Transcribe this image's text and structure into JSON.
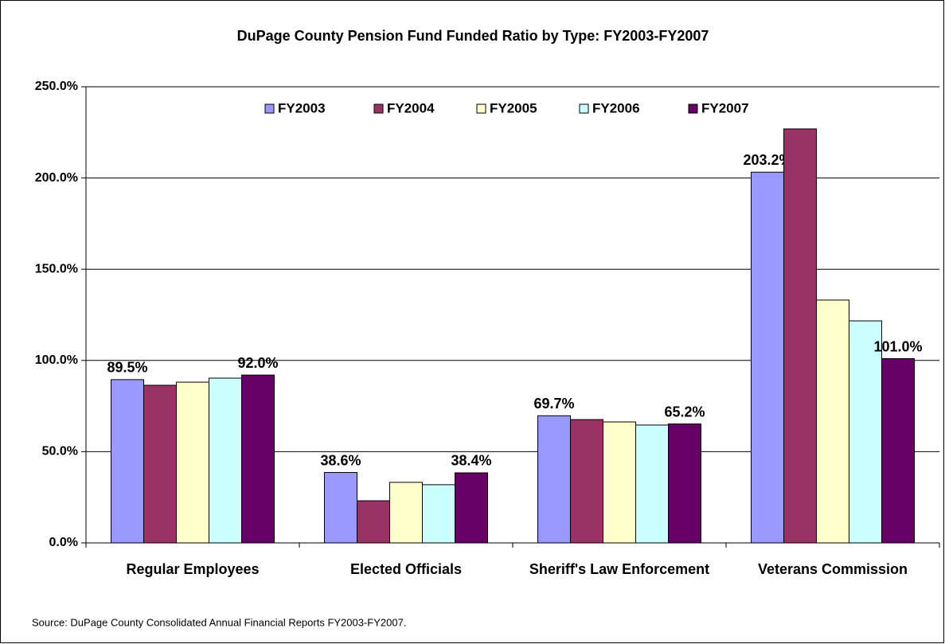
{
  "chart_data": {
    "type": "bar",
    "title": "DuPage County Pension Fund Funded Ratio by Type: FY2003-FY2007",
    "categories": [
      "Regular Employees",
      "Elected Officials",
      "Sheriff's Law Enforcement",
      "Veterans Commission"
    ],
    "series": [
      {
        "name": "FY2003",
        "color": "#9999ff",
        "values": [
          89.5,
          38.6,
          69.7,
          203.2
        ],
        "value_labels": [
          "89.5%",
          "38.6%",
          "69.7%",
          "203.2%"
        ]
      },
      {
        "name": "FY2004",
        "color": "#993366",
        "values": [
          86.4,
          23.1,
          67.6,
          226.9
        ]
      },
      {
        "name": "FY2005",
        "color": "#ffffcc",
        "values": [
          88.1,
          33.2,
          66.3,
          133.1
        ]
      },
      {
        "name": "FY2006",
        "color": "#ccffff",
        "values": [
          90.3,
          31.9,
          64.6,
          121.7
        ]
      },
      {
        "name": "FY2007",
        "color": "#660066",
        "values": [
          92.0,
          38.4,
          65.2,
          101.0
        ],
        "value_labels": [
          "92.0%",
          "38.4%",
          "65.2%",
          "101.0%"
        ]
      }
    ],
    "ylim": [
      0,
      250
    ],
    "yticks": [
      {
        "value": 0,
        "label": "0.0%"
      },
      {
        "value": 50,
        "label": "50.0%"
      },
      {
        "value": 100,
        "label": "100.0%"
      },
      {
        "value": 150,
        "label": "150.0%"
      },
      {
        "value": 200,
        "label": "200.0%"
      },
      {
        "value": 250,
        "label": "250.0%"
      }
    ],
    "grid": true,
    "legend": "top",
    "source": "Source:  DuPage County Consolidated Annual Financial Reports FY2003-FY2007."
  }
}
